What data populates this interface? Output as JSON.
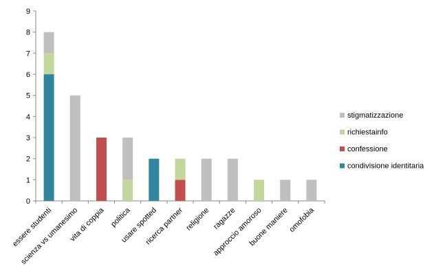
{
  "chart_data": {
    "type": "bar",
    "stacked": true,
    "categories": [
      "essere studenti",
      "scienza vs umanesimo",
      "vita di coppia",
      "politica",
      "usare spotted",
      "ricerca partner",
      "religione",
      "ragazze",
      "approccio amoroso",
      "buone maniere",
      "omofobia"
    ],
    "series": [
      {
        "name": "condivisione identitaria",
        "color": "#31859C",
        "values": [
          6,
          0,
          0,
          0,
          2,
          0,
          0,
          0,
          0,
          0,
          0
        ]
      },
      {
        "name": "confessione",
        "color": "#C0504D",
        "values": [
          0,
          0,
          3,
          0,
          0,
          1,
          0,
          0,
          0,
          0,
          0
        ]
      },
      {
        "name": "richiesta info",
        "color": "#C3D69B",
        "values": [
          1,
          0,
          0,
          1,
          0,
          1,
          0,
          0,
          1,
          0,
          0
        ]
      },
      {
        "name": "stigmatizzazione",
        "color": "#BFBFBF",
        "values": [
          1,
          5,
          0,
          2,
          0,
          0,
          2,
          2,
          0,
          1,
          1
        ]
      }
    ],
    "legend_labels": [
      "stigmatizzazione",
      "richiestainfo",
      "confessione",
      "condivisione identitaria"
    ],
    "legend_colors": [
      "#BFBFBF",
      "#C3D69B",
      "#C0504D",
      "#31859C"
    ],
    "ylim": [
      0,
      9
    ],
    "yticks": [
      "0",
      "1",
      "2",
      "3",
      "4",
      "5",
      "6",
      "7",
      "8",
      "9"
    ],
    "grid": false,
    "legend_position": "right"
  }
}
